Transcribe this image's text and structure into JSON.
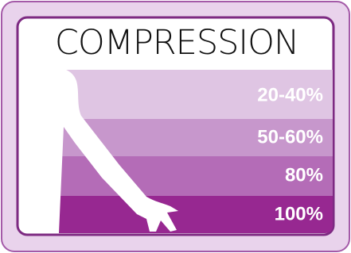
{
  "title": "COMPRESSION",
  "levels": [
    "20-40%",
    "50-60%",
    "80%",
    "100%"
  ]
}
